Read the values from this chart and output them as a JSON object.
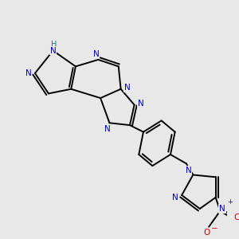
{
  "background_color": "#e8e8e8",
  "bond_color": "#000000",
  "N_color": "#0000cc",
  "O_color": "#cc0000",
  "H_color": "#008080",
  "figsize": [
    3.0,
    3.0
  ],
  "dpi": 100,
  "xlim": [
    0,
    10
  ],
  "ylim": [
    0,
    10
  ],
  "lw": 1.4,
  "fs": 7.5
}
